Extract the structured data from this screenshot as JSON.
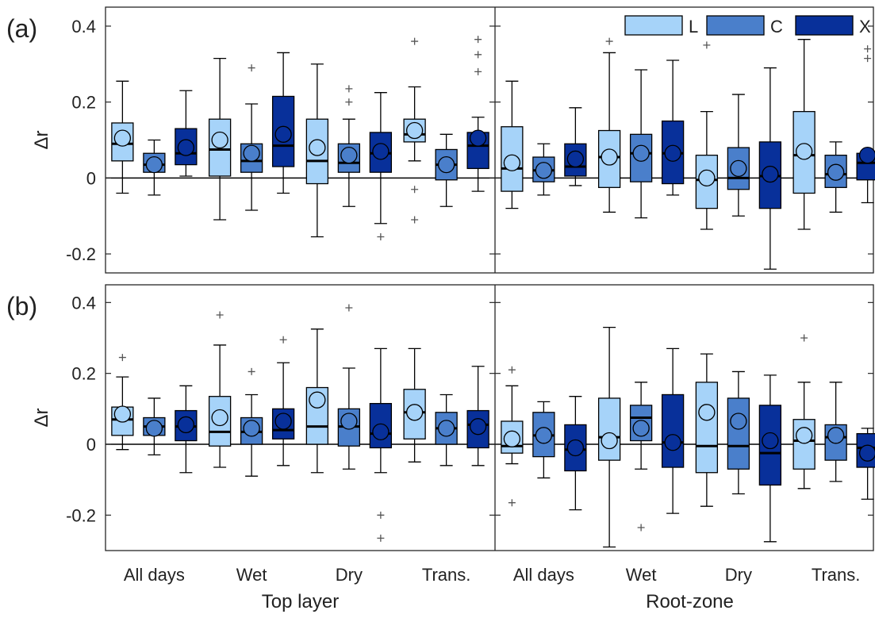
{
  "chart_data": {
    "type": "box",
    "ylabel": "Δr",
    "panel_tags": [
      "(a)",
      "(b)"
    ],
    "groups": [
      "All days",
      "Wet",
      "Dry",
      "Trans."
    ],
    "sections": [
      "Top layer",
      "Root-zone"
    ],
    "series": [
      {
        "name": "L",
        "color": "#a6d3f9"
      },
      {
        "name": "C",
        "color": "#4a7fcb"
      },
      {
        "name": "X",
        "color": "#08309a"
      }
    ],
    "legend_position": "top-right (panel a)",
    "y_ticks": [
      "0.4",
      "0.2",
      "0",
      "-0.2"
    ],
    "y_tick_values": [
      0.4,
      0.2,
      0,
      -0.2
    ],
    "panels": [
      {
        "tag": "(a)",
        "ylim": [
          -0.25,
          0.45
        ],
        "boxes": [
          [
            [
              {
                "whisker_low": -0.04,
                "q1": 0.045,
                "median": 0.09,
                "q3": 0.145,
                "whisker_high": 0.255,
                "mean": 0.105,
                "outliers": []
              },
              {
                "whisker_low": -0.045,
                "q1": 0.015,
                "median": 0.035,
                "q3": 0.065,
                "whisker_high": 0.1,
                "mean": 0.035,
                "outliers": []
              },
              {
                "whisker_low": 0.005,
                "q1": 0.035,
                "median": 0.065,
                "q3": 0.13,
                "whisker_high": 0.23,
                "mean": 0.08,
                "outliers": []
              }
            ],
            [
              {
                "whisker_low": -0.11,
                "q1": 0.005,
                "median": 0.075,
                "q3": 0.155,
                "whisker_high": 0.315,
                "mean": 0.1,
                "outliers": []
              },
              {
                "whisker_low": -0.085,
                "q1": 0.015,
                "median": 0.045,
                "q3": 0.09,
                "whisker_high": 0.195,
                "mean": 0.065,
                "outliers": [
                  0.29
                ]
              },
              {
                "whisker_low": -0.04,
                "q1": 0.03,
                "median": 0.085,
                "q3": 0.215,
                "whisker_high": 0.33,
                "mean": 0.115,
                "outliers": []
              }
            ],
            [
              {
                "whisker_low": -0.155,
                "q1": -0.015,
                "median": 0.045,
                "q3": 0.155,
                "whisker_high": 0.3,
                "mean": 0.08,
                "outliers": []
              },
              {
                "whisker_low": -0.075,
                "q1": 0.015,
                "median": 0.04,
                "q3": 0.09,
                "whisker_high": 0.155,
                "mean": 0.06,
                "outliers": [
                  0.2,
                  0.235
                ]
              },
              {
                "whisker_low": -0.12,
                "q1": 0.015,
                "median": 0.065,
                "q3": 0.12,
                "whisker_high": 0.225,
                "mean": 0.07,
                "outliers": [
                  -0.155
                ]
              }
            ],
            [
              {
                "whisker_low": 0.045,
                "q1": 0.095,
                "median": 0.115,
                "q3": 0.155,
                "whisker_high": 0.24,
                "mean": 0.125,
                "outliers": [
                  0.36,
                  -0.03,
                  -0.11
                ]
              },
              {
                "whisker_low": -0.075,
                "q1": -0.005,
                "median": 0.035,
                "q3": 0.075,
                "whisker_high": 0.115,
                "mean": 0.035,
                "outliers": []
              },
              {
                "whisker_low": -0.035,
                "q1": 0.025,
                "median": 0.085,
                "q3": 0.12,
                "whisker_high": 0.16,
                "mean": 0.105,
                "outliers": [
                  0.365,
                  0.325,
                  0.28
                ]
              }
            ]
          ],
          [
            [
              {
                "whisker_low": -0.08,
                "q1": -0.035,
                "median": 0.025,
                "q3": 0.135,
                "whisker_high": 0.255,
                "mean": 0.04,
                "outliers": []
              },
              {
                "whisker_low": -0.045,
                "q1": -0.01,
                "median": 0.02,
                "q3": 0.055,
                "whisker_high": 0.09,
                "mean": 0.02,
                "outliers": []
              },
              {
                "whisker_low": -0.02,
                "q1": 0.005,
                "median": 0.03,
                "q3": 0.09,
                "whisker_high": 0.185,
                "mean": 0.05,
                "outliers": []
              }
            ],
            [
              {
                "whisker_low": -0.09,
                "q1": -0.025,
                "median": 0.055,
                "q3": 0.125,
                "whisker_high": 0.33,
                "mean": 0.055,
                "outliers": [
                  0.36
                ]
              },
              {
                "whisker_low": -0.105,
                "q1": -0.01,
                "median": 0.065,
                "q3": 0.115,
                "whisker_high": 0.285,
                "mean": 0.065,
                "outliers": []
              },
              {
                "whisker_low": -0.045,
                "q1": -0.015,
                "median": 0.065,
                "q3": 0.15,
                "whisker_high": 0.31,
                "mean": 0.065,
                "outliers": []
              }
            ],
            [
              {
                "whisker_low": -0.135,
                "q1": -0.08,
                "median": -0.005,
                "q3": 0.06,
                "whisker_high": 0.175,
                "mean": 0.0,
                "outliers": [
                  0.35
                ]
              },
              {
                "whisker_low": -0.1,
                "q1": -0.03,
                "median": 0.0,
                "q3": 0.08,
                "whisker_high": 0.22,
                "mean": 0.025,
                "outliers": []
              },
              {
                "whisker_low": -0.24,
                "q1": -0.08,
                "median": 0.005,
                "q3": 0.095,
                "whisker_high": 0.29,
                "mean": 0.01,
                "outliers": []
              }
            ],
            [
              {
                "whisker_low": -0.135,
                "q1": -0.04,
                "median": 0.06,
                "q3": 0.175,
                "whisker_high": 0.365,
                "mean": 0.07,
                "outliers": []
              },
              {
                "whisker_low": -0.09,
                "q1": -0.025,
                "median": 0.01,
                "q3": 0.06,
                "whisker_high": 0.095,
                "mean": 0.015,
                "outliers": []
              },
              {
                "whisker_low": -0.065,
                "q1": -0.005,
                "median": 0.04,
                "q3": 0.065,
                "whisker_high": 0.065,
                "mean": 0.06,
                "outliers": [
                  0.34,
                  0.315
                ]
              }
            ]
          ]
        ]
      },
      {
        "tag": "(b)",
        "ylim": [
          -0.3,
          0.45
        ],
        "boxes": [
          [
            [
              {
                "whisker_low": -0.015,
                "q1": 0.025,
                "median": 0.07,
                "q3": 0.105,
                "whisker_high": 0.19,
                "mean": 0.085,
                "outliers": [
                  0.245
                ]
              },
              {
                "whisker_low": -0.03,
                "q1": 0.025,
                "median": 0.05,
                "q3": 0.075,
                "whisker_high": 0.13,
                "mean": 0.045,
                "outliers": []
              },
              {
                "whisker_low": -0.08,
                "q1": 0.01,
                "median": 0.05,
                "q3": 0.095,
                "whisker_high": 0.165,
                "mean": 0.055,
                "outliers": []
              }
            ],
            [
              {
                "whisker_low": -0.065,
                "q1": -0.005,
                "median": 0.035,
                "q3": 0.135,
                "whisker_high": 0.28,
                "mean": 0.075,
                "outliers": [
                  0.365
                ]
              },
              {
                "whisker_low": -0.09,
                "q1": 0.0,
                "median": 0.035,
                "q3": 0.075,
                "whisker_high": 0.14,
                "mean": 0.045,
                "outliers": [
                  0.205
                ]
              },
              {
                "whisker_low": -0.06,
                "q1": 0.015,
                "median": 0.04,
                "q3": 0.1,
                "whisker_high": 0.23,
                "mean": 0.065,
                "outliers": [
                  0.295
                ]
              }
            ],
            [
              {
                "whisker_low": -0.08,
                "q1": 0.0,
                "median": 0.05,
                "q3": 0.16,
                "whisker_high": 0.325,
                "mean": 0.125,
                "outliers": []
              },
              {
                "whisker_low": -0.07,
                "q1": -0.005,
                "median": 0.05,
                "q3": 0.1,
                "whisker_high": 0.215,
                "mean": 0.065,
                "outliers": [
                  0.385
                ]
              },
              {
                "whisker_low": -0.08,
                "q1": -0.01,
                "median": 0.03,
                "q3": 0.115,
                "whisker_high": 0.27,
                "mean": 0.035,
                "outliers": [
                  -0.2,
                  -0.265
                ]
              }
            ],
            [
              {
                "whisker_low": -0.05,
                "q1": 0.015,
                "median": 0.09,
                "q3": 0.155,
                "whisker_high": 0.27,
                "mean": 0.09,
                "outliers": []
              },
              {
                "whisker_low": -0.06,
                "q1": 0.0,
                "median": 0.045,
                "q3": 0.09,
                "whisker_high": 0.14,
                "mean": 0.045,
                "outliers": []
              },
              {
                "whisker_low": -0.06,
                "q1": -0.01,
                "median": 0.055,
                "q3": 0.095,
                "whisker_high": 0.22,
                "mean": 0.05,
                "outliers": []
              }
            ]
          ],
          [
            [
              {
                "whisker_low": -0.055,
                "q1": -0.025,
                "median": -0.005,
                "q3": 0.065,
                "whisker_high": 0.165,
                "mean": 0.015,
                "outliers": [
                  0.21,
                  -0.165
                ]
              },
              {
                "whisker_low": -0.095,
                "q1": -0.035,
                "median": 0.025,
                "q3": 0.09,
                "whisker_high": 0.12,
                "mean": 0.025,
                "outliers": []
              },
              {
                "whisker_low": -0.185,
                "q1": -0.075,
                "median": -0.015,
                "q3": 0.055,
                "whisker_high": 0.135,
                "mean": -0.01,
                "outliers": []
              }
            ],
            [
              {
                "whisker_low": -0.29,
                "q1": -0.045,
                "median": 0.02,
                "q3": 0.13,
                "whisker_high": 0.33,
                "mean": 0.01,
                "outliers": []
              },
              {
                "whisker_low": -0.07,
                "q1": 0.01,
                "median": 0.075,
                "q3": 0.11,
                "whisker_high": 0.175,
                "mean": 0.045,
                "outliers": [
                  -0.235
                ]
              },
              {
                "whisker_low": -0.195,
                "q1": -0.065,
                "median": 0.005,
                "q3": 0.14,
                "whisker_high": 0.27,
                "mean": 0.005,
                "outliers": []
              }
            ],
            [
              {
                "whisker_low": -0.175,
                "q1": -0.08,
                "median": -0.005,
                "q3": 0.175,
                "whisker_high": 0.255,
                "mean": 0.09,
                "outliers": []
              },
              {
                "whisker_low": -0.14,
                "q1": -0.07,
                "median": -0.005,
                "q3": 0.13,
                "whisker_high": 0.205,
                "mean": 0.065,
                "outliers": []
              },
              {
                "whisker_low": -0.275,
                "q1": -0.115,
                "median": -0.025,
                "q3": 0.11,
                "whisker_high": 0.195,
                "mean": 0.01,
                "outliers": []
              }
            ],
            [
              {
                "whisker_low": -0.125,
                "q1": -0.07,
                "median": 0.01,
                "q3": 0.07,
                "whisker_high": 0.175,
                "mean": 0.025,
                "outliers": [
                  0.3
                ]
              },
              {
                "whisker_low": -0.105,
                "q1": -0.045,
                "median": 0.02,
                "q3": 0.055,
                "whisker_high": 0.175,
                "mean": 0.025,
                "outliers": []
              },
              {
                "whisker_low": -0.155,
                "q1": -0.065,
                "median": -0.01,
                "q3": 0.03,
                "whisker_high": 0.045,
                "mean": -0.025,
                "outliers": []
              }
            ]
          ]
        ]
      }
    ]
  }
}
